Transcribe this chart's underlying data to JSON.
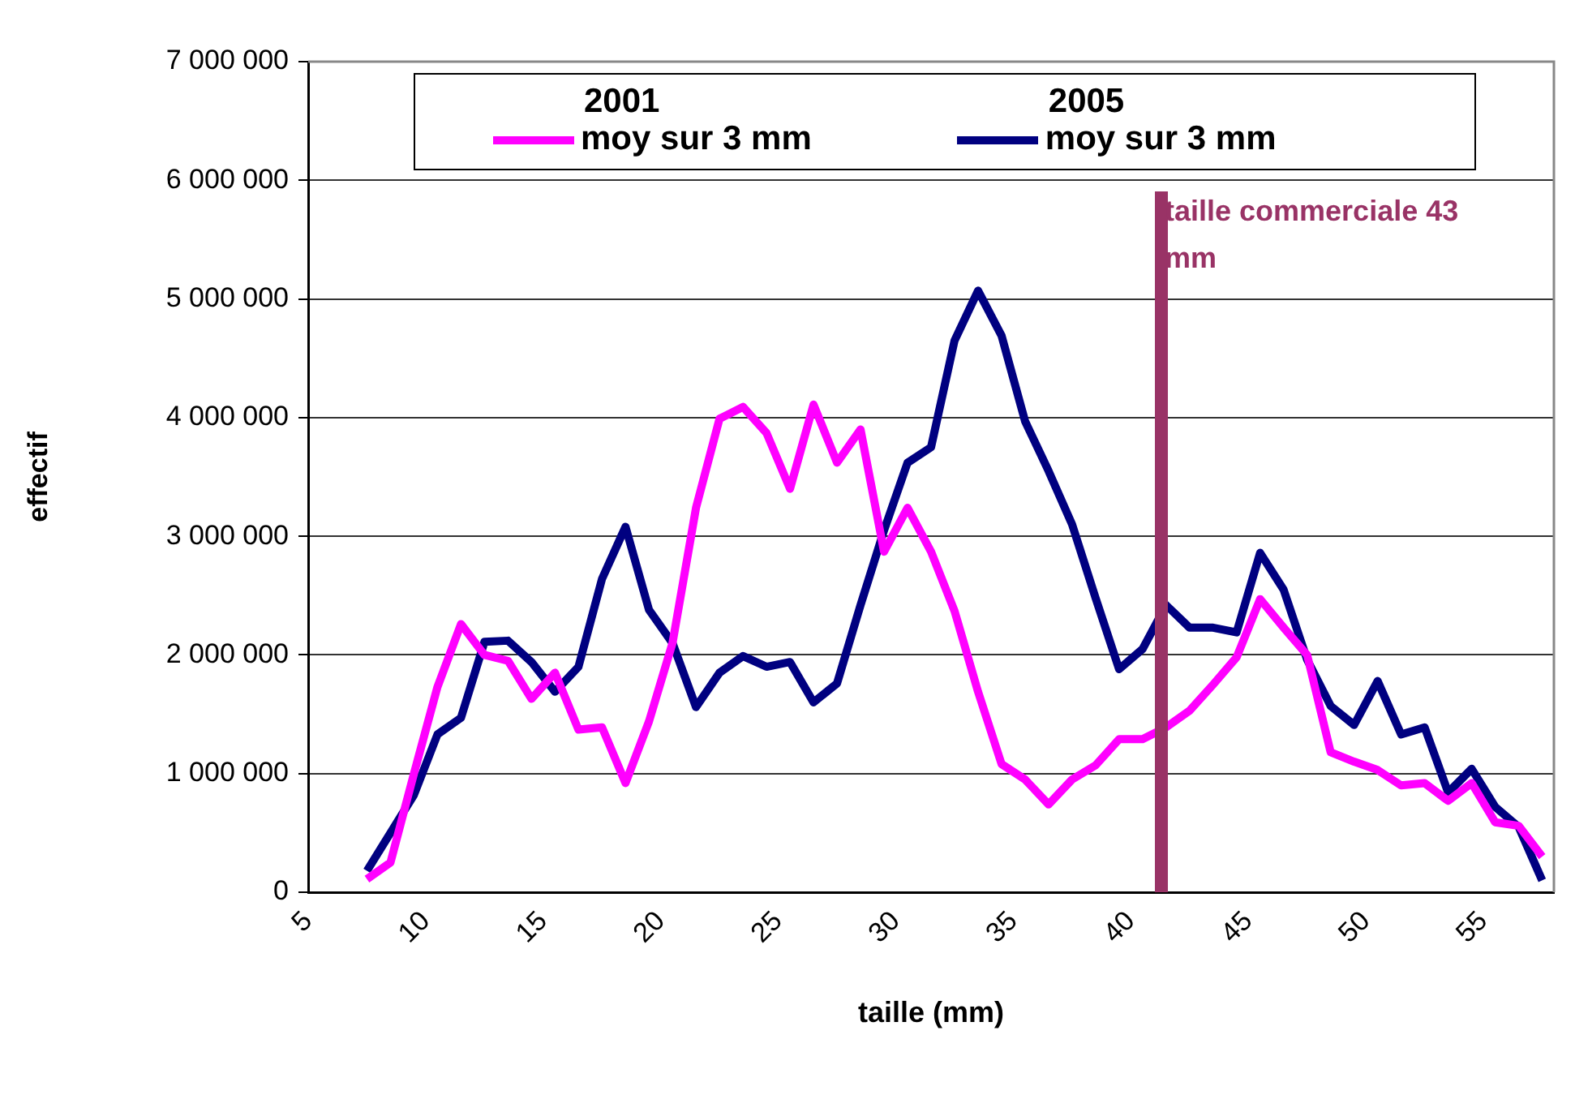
{
  "chart_data": {
    "type": "line",
    "xlabel": "taille (mm)",
    "ylabel": "effectif",
    "x": [
      7.5,
      8.5,
      9.5,
      10.5,
      11.5,
      12.5,
      13.5,
      14.5,
      15.5,
      16.5,
      17.5,
      18.5,
      19.5,
      20.5,
      21.5,
      22.5,
      23.5,
      24.5,
      25.5,
      26.5,
      27.5,
      28.5,
      29.5,
      30.5,
      31.5,
      32.5,
      33.5,
      34.5,
      35.5,
      36.5,
      37.5,
      38.5,
      39.5,
      40.5,
      41.5,
      42.5,
      43.5,
      44.5,
      45.5,
      46.5,
      47.5,
      48.5,
      49.5,
      50.5,
      51.5,
      52.5,
      53.5,
      54.5,
      55.5,
      56.5,
      57.5
    ],
    "series": [
      {
        "name": "2001 moy sur 3 mm",
        "color": "#ff00ff",
        "values": [
          110000,
          250000,
          1000000,
          1730000,
          2260000,
          2000000,
          1950000,
          1630000,
          1850000,
          1370000,
          1390000,
          920000,
          1440000,
          2100000,
          3240000,
          3990000,
          4090000,
          3870000,
          3400000,
          4110000,
          3620000,
          3900000,
          2870000,
          3240000,
          2870000,
          2370000,
          1690000,
          1080000,
          950000,
          740000,
          950000,
          1070000,
          1290000,
          1290000,
          1390000,
          1530000,
          1750000,
          1980000,
          2470000,
          2230000,
          2000000,
          1180000,
          1100000,
          1030000,
          900000,
          920000,
          770000,
          920000,
          590000,
          560000,
          300000
        ]
      },
      {
        "name": "2005 moy sur 3 mm",
        "color": "#000080",
        "values": [
          180000,
          500000,
          820000,
          1330000,
          1470000,
          2110000,
          2120000,
          1940000,
          1690000,
          1900000,
          2640000,
          3080000,
          2380000,
          2100000,
          1560000,
          1850000,
          1990000,
          1900000,
          1940000,
          1600000,
          1760000,
          2420000,
          3050000,
          3620000,
          3750000,
          4650000,
          5070000,
          4690000,
          3970000,
          3550000,
          3100000,
          2480000,
          1880000,
          2050000,
          2420000,
          2230000,
          2230000,
          2190000,
          2860000,
          2550000,
          1960000,
          1570000,
          1410000,
          1780000,
          1330000,
          1390000,
          840000,
          1040000,
          720000,
          550000,
          100000
        ]
      }
    ],
    "xlim": [
      5,
      58
    ],
    "xticks": [
      5,
      10,
      15,
      20,
      25,
      30,
      35,
      40,
      45,
      50,
      55
    ],
    "ylim": [
      0,
      7000000
    ],
    "yticks": [
      {
        "value": 0,
        "label": "0"
      },
      {
        "value": 1000000,
        "label": "1 000 000"
      },
      {
        "value": 2000000,
        "label": "2 000 000"
      },
      {
        "value": 3000000,
        "label": "3 000 000"
      },
      {
        "value": 4000000,
        "label": "4 000 000"
      },
      {
        "value": 5000000,
        "label": "5 000 000"
      },
      {
        "value": 6000000,
        "label": "6 000 000"
      },
      {
        "value": 7000000,
        "label": "7 000 000"
      }
    ],
    "ref_lines": [
      {
        "axis": "x",
        "value": 41.3,
        "label": "taille commerciale 43 mm",
        "color": "#993366"
      }
    ],
    "grid": "y",
    "legend": "top",
    "marker": "none",
    "line_style": "solid"
  }
}
